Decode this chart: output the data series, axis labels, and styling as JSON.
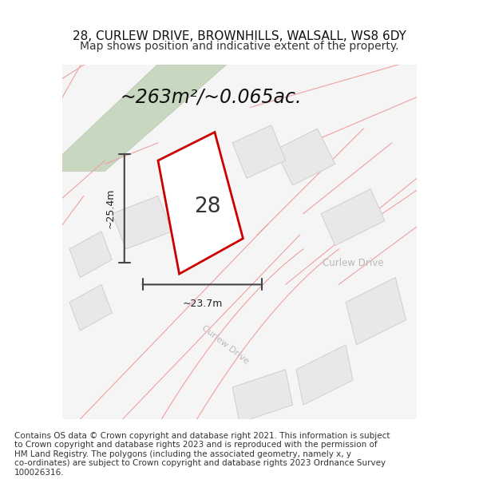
{
  "title_line1": "28, CURLEW DRIVE, BROWNHILLS, WALSALL, WS8 6DY",
  "title_line2": "Map shows position and indicative extent of the property.",
  "area_label": "~263m²/~0.065ac.",
  "number_label": "28",
  "dim_vertical": "~25.4m",
  "dim_horizontal": "~23.7m",
  "road_label": "Curlew Drive",
  "road_label_diag": "Curlew Drive",
  "copyright_text": "Contains OS data © Crown copyright and database right 2021. This information is subject to Crown copyright and database rights 2023 and is reproduced with the permission of HM Land Registry. The polygons (including the associated geometry, namely x, y co-ordinates) are subject to Crown copyright and database rights 2023 Ordnance Survey 100026316.",
  "bg_color": "#ffffff",
  "building_fill": "#e8e8e8",
  "building_edge": "#d0c8c8",
  "green_strip_fill": "#c8d8c0",
  "green_strip_edge": "#b8c8b0",
  "property_edge": "#cc0000",
  "property_fill": "#ffffff",
  "dim_line_color": "#444444",
  "road_line_color": "#f0a0a0",
  "title_fontsize": 11,
  "subtitle_fontsize": 10,
  "area_fontsize": 17,
  "copyright_fontsize": 7.5
}
